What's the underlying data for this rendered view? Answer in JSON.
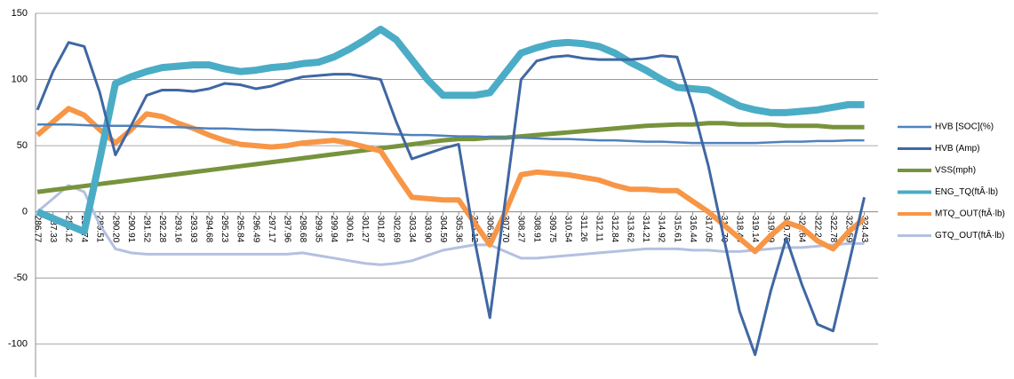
{
  "chart_data": {
    "type": "line",
    "categories": [
      "286.77",
      "287.33",
      "288.12",
      "288.74",
      "289.51",
      "290.20",
      "290.91",
      "291.52",
      "292.28",
      "293.16",
      "293.93",
      "294.68",
      "295.23",
      "295.84",
      "296.49",
      "297.17",
      "297.96",
      "298.68",
      "299.35",
      "299.94",
      "300.61",
      "301.27",
      "301.87",
      "302.69",
      "303.34",
      "303.90",
      "304.59",
      "305.36",
      "306.12",
      "306.88",
      "307.70",
      "308.27",
      "308.91",
      "309.75",
      "310.54",
      "311.26",
      "312.11",
      "312.84",
      "313.62",
      "314.21",
      "314.92",
      "315.61",
      "316.44",
      "317.05",
      "317.70",
      "318.44",
      "319.14",
      "319.89",
      "320.75",
      "321.64",
      "322.24",
      "322.78",
      "323.59",
      "324.43"
    ],
    "series": [
      {
        "name": "HVB [SOC](%)",
        "color": "#4f81bd",
        "values": [
          66,
          66,
          66,
          65.5,
          65,
          65,
          65,
          64.5,
          64,
          64,
          63.5,
          63,
          63,
          62.5,
          62,
          62,
          61.5,
          61,
          60.5,
          60,
          60,
          59.5,
          59,
          58.5,
          58,
          58,
          57.5,
          57,
          57,
          56.5,
          56,
          56,
          55.5,
          55,
          55,
          54.5,
          54,
          54,
          53.5,
          53,
          53,
          52.5,
          52,
          52,
          52,
          52,
          52,
          52.5,
          53,
          53,
          53.5,
          53.5,
          54,
          54
        ]
      },
      {
        "name": "HVB (Amp)",
        "color": "#3f67a3",
        "values": [
          77,
          106,
          128,
          125,
          90,
          43,
          65,
          88,
          92,
          92,
          91,
          93,
          97,
          96,
          93,
          95,
          99,
          102,
          103,
          104,
          104,
          102,
          100,
          68,
          40,
          44,
          48,
          51,
          -20,
          -80,
          10,
          100,
          114,
          117,
          118,
          116,
          115,
          115,
          115,
          116,
          118,
          117,
          80,
          35,
          -20,
          -75,
          -108,
          -60,
          -20,
          -55,
          -85,
          -90,
          -40,
          11
        ]
      },
      {
        "name": "VSS(mph)",
        "color": "#77933c",
        "values": [
          15,
          16.5,
          18,
          19.5,
          21,
          22.5,
          24,
          25.5,
          27,
          28.5,
          30,
          31.5,
          33,
          34.5,
          36,
          37.5,
          39,
          40.5,
          42,
          43.5,
          45,
          46.5,
          48,
          49.5,
          51,
          52.5,
          54,
          55,
          55,
          56,
          56,
          57,
          58,
          59,
          60,
          61,
          62,
          63,
          64,
          65,
          65.5,
          66,
          66,
          67,
          67,
          66,
          66,
          66,
          65,
          65,
          65,
          64,
          64,
          64
        ]
      },
      {
        "name": "ENG_TQ(ftÂ·lb)",
        "color": "#4bacc6",
        "values": [
          0,
          -5,
          -10,
          -15,
          40,
          97,
          102,
          106,
          109,
          110,
          111,
          111,
          108,
          106,
          107,
          109,
          110,
          112,
          113,
          117,
          123,
          130,
          138,
          130,
          115,
          100,
          88,
          88,
          88,
          90,
          105,
          120,
          124,
          127,
          128,
          127,
          125,
          120,
          113,
          107,
          100,
          94,
          93,
          92,
          86,
          80,
          77,
          75,
          75,
          76,
          77,
          79,
          81,
          81
        ]
      },
      {
        "name": "MTQ_OUT(ftÂ·lb)",
        "color": "#f79646",
        "values": [
          58,
          68,
          78,
          73,
          62,
          52,
          62,
          74,
          72,
          67,
          63,
          58,
          54,
          51,
          50,
          49,
          50,
          52,
          53,
          54,
          52,
          49,
          46,
          28,
          11,
          10,
          9,
          9,
          -8,
          -25,
          0,
          28,
          30,
          29,
          28,
          26,
          24,
          20,
          17,
          17,
          16,
          16,
          8,
          0,
          -10,
          -20,
          -30,
          -18,
          -8,
          -12,
          -22,
          -28,
          -15,
          -5
        ]
      },
      {
        "name": "GTQ_OUT(ftÂ·lb)",
        "color": "#b4c0e0",
        "values": [
          0,
          10,
          20,
          15,
          -10,
          -28,
          -31,
          -32,
          -32,
          -32,
          -32,
          -32,
          -32,
          -32,
          -32,
          -32,
          -32,
          -31,
          -33,
          -35,
          -37,
          -39,
          -40,
          -39,
          -37,
          -33,
          -29,
          -27,
          -25,
          -25,
          -30,
          -35,
          -35,
          -34,
          -33,
          -32,
          -31,
          -30,
          -29,
          -28,
          -28,
          -28,
          -29,
          -29,
          -30,
          -30,
          -29,
          -28,
          -27,
          -27,
          -26,
          -25,
          -24,
          -24
        ]
      }
    ],
    "ylim": [
      -125,
      150
    ],
    "yticks": [
      -100,
      -50,
      0,
      50,
      100,
      150
    ],
    "grid": true,
    "legend": "right"
  }
}
